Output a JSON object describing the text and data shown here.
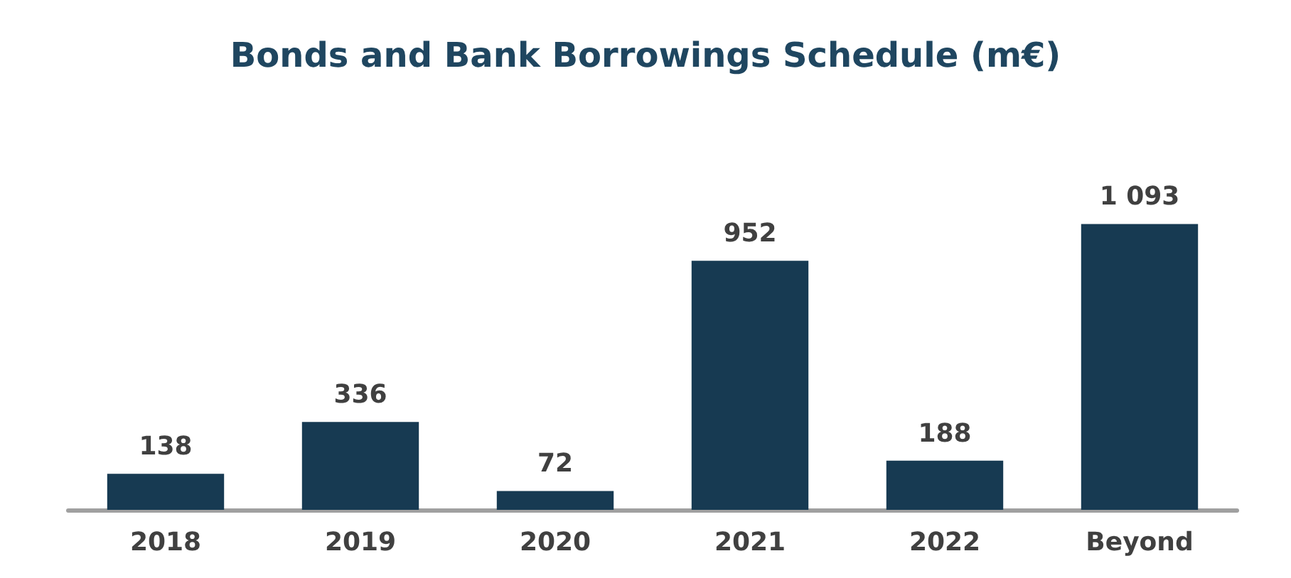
{
  "chart_data": {
    "type": "bar",
    "title": "Bonds and Bank Borrowings Schedule (m€)",
    "categories": [
      "2018",
      "2019",
      "2020",
      "2021",
      "2022",
      "Beyond"
    ],
    "values": [
      138,
      336,
      72,
      952,
      188,
      1093
    ],
    "value_labels": [
      "138",
      "336",
      "72",
      "952",
      "188",
      "1 093"
    ],
    "color": "#173a52"
  }
}
